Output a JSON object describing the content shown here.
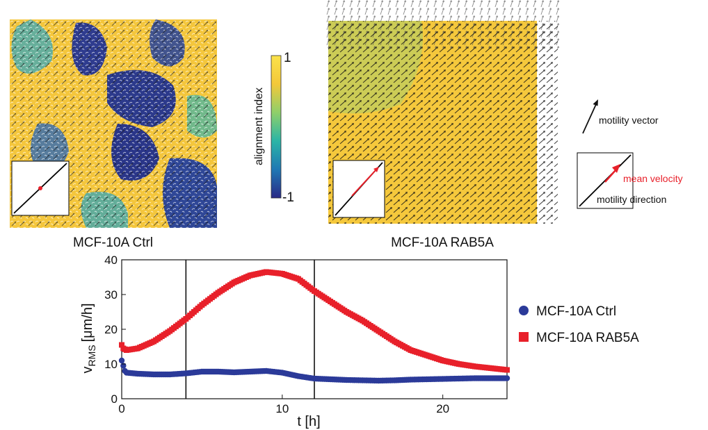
{
  "panels": {
    "left_label": "MCF-10A Ctrl",
    "right_label": "MCF-10A RAB5A"
  },
  "colorbar": {
    "label": "alignment index",
    "max_label": "1",
    "min_label": "-1",
    "colors": [
      "#2a2a86",
      "#1f78b4",
      "#2bb5a6",
      "#8fcf6a",
      "#f3c83a",
      "#fbe24a"
    ]
  },
  "key": {
    "motility_vector": "motility vector",
    "mean_velocity": "mean velocity",
    "motility_direction": "motility direction",
    "accent": "#e8202a"
  },
  "chart_data": {
    "type": "scatter",
    "ylabel_main": "v",
    "ylabel_sub": "RMS",
    "ylabel_unit": "[μm/h]",
    "xlabel": "t [h]",
    "xlim": [
      0,
      24
    ],
    "ylim": [
      0,
      40
    ],
    "xticks": [
      "0",
      "10",
      "20"
    ],
    "yticks": [
      "0",
      "10",
      "20",
      "30",
      "40"
    ],
    "vlines": [
      4,
      12
    ],
    "grid": false,
    "legend_position": "right",
    "series": [
      {
        "name": "MCF-10A Ctrl",
        "marker": "circle",
        "color": "#2b3a99",
        "x": [
          0,
          0.1,
          0.2,
          0.3,
          1,
          2,
          3,
          4,
          5,
          6,
          7,
          8,
          9,
          10,
          11,
          12,
          13,
          14,
          15,
          16,
          17,
          18,
          19,
          20,
          21,
          22,
          23,
          24
        ],
        "y": [
          11,
          9.5,
          8,
          7.5,
          7.2,
          7,
          7,
          7.3,
          7.8,
          7.8,
          7.6,
          7.8,
          8,
          7.5,
          6.5,
          5.8,
          5.6,
          5.4,
          5.3,
          5.2,
          5.3,
          5.5,
          5.6,
          5.7,
          5.8,
          5.9,
          5.9,
          5.9
        ]
      },
      {
        "name": "MCF-10A RAB5A",
        "marker": "square",
        "color": "#e8202a",
        "x": [
          0,
          0.1,
          0.3,
          1,
          2,
          3,
          4,
          5,
          6,
          7,
          8,
          9,
          10,
          11,
          12,
          13,
          14,
          15,
          16,
          17,
          18,
          19,
          20,
          21,
          22,
          23,
          24
        ],
        "y": [
          15.5,
          14.5,
          14,
          14.5,
          16.5,
          19.5,
          23,
          27,
          30.5,
          33.5,
          35.5,
          36.5,
          36,
          34.5,
          31,
          28,
          25,
          22.5,
          19.5,
          16.5,
          14,
          12.5,
          11,
          10,
          9.3,
          8.8,
          8.3
        ]
      }
    ]
  }
}
